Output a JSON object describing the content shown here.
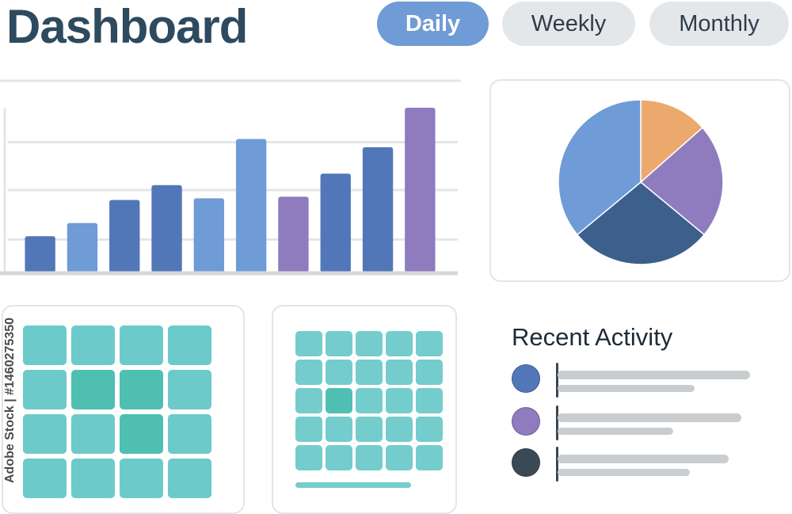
{
  "header": {
    "title": "Dashboard",
    "tabs": [
      {
        "label": "Daily",
        "active": true
      },
      {
        "label": "Weekly",
        "active": false
      },
      {
        "label": "Monthly",
        "active": false
      }
    ]
  },
  "watermark": {
    "id_text": "Adobe Stock | #1460275350"
  },
  "bar_chart": {
    "type": "bar",
    "ylim": [
      0,
      100
    ],
    "gridlines": [
      20,
      50,
      79
    ],
    "values": [
      22,
      30,
      44,
      53,
      45,
      81,
      46,
      60,
      76,
      100
    ],
    "colors": [
      "#5277b8",
      "#6f9bd6",
      "#5277b8",
      "#5277b8",
      "#6f9bd6",
      "#6f9bd6",
      "#8e7cbf",
      "#5277b8",
      "#5277b8",
      "#8e7cbf"
    ]
  },
  "pie_chart": {
    "type": "pie",
    "slices": [
      {
        "value": 13.5,
        "color": "#eba96e"
      },
      {
        "value": 22.5,
        "color": "#8e7cbf"
      },
      {
        "value": 28.0,
        "color": "#3d5f8c"
      },
      {
        "value": 36.0,
        "color": "#6f9bd6"
      }
    ]
  },
  "heatmap_left": {
    "rows": 4,
    "cols": 4,
    "base_color": "#6dcaca",
    "highlight_color": "#4fbfb2",
    "highlights": [
      [
        1,
        1
      ],
      [
        1,
        2
      ],
      [
        2,
        2
      ]
    ]
  },
  "heatmap_right": {
    "rows": 5,
    "cols": 5,
    "base_color": "#74cccd",
    "highlight_color": "#4fbfb2",
    "highlights": [
      [
        2,
        1
      ]
    ],
    "progress": 0.8
  },
  "recent_activity": {
    "title": "Recent Activity",
    "items": [
      {
        "color": "#5277b8",
        "line1": 0.9,
        "line2": 0.64
      },
      {
        "color": "#8e7cbf",
        "line1": 0.86,
        "line2": 0.54
      },
      {
        "color": "#3a4a55",
        "line1": 0.8,
        "line2": 0.62
      }
    ]
  }
}
